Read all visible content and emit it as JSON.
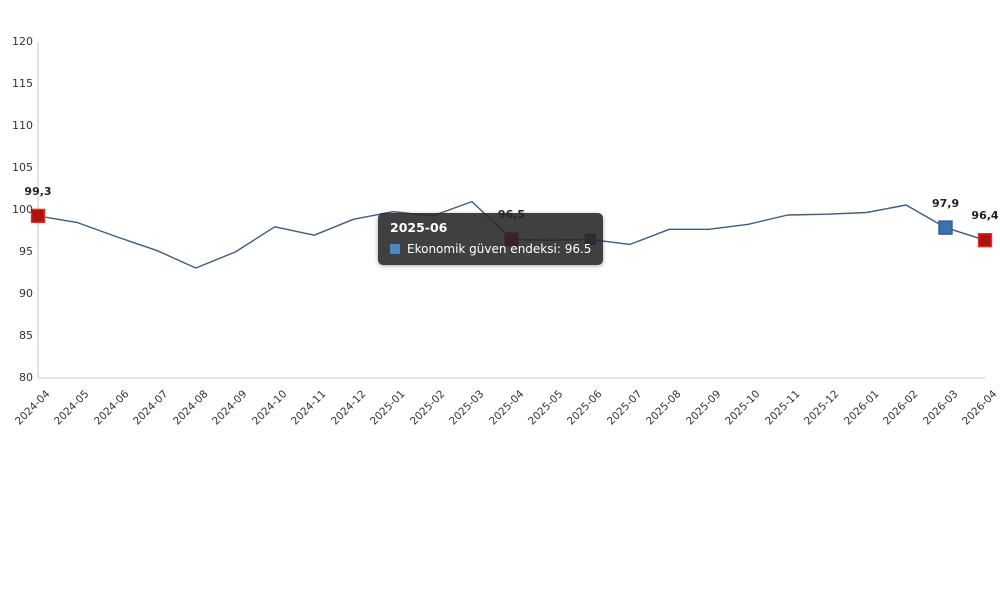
{
  "chart_data": {
    "type": "line",
    "title": "",
    "series_name": "Ekonomik güven endeksi",
    "categories": [
      "2024-04",
      "2024-05",
      "2024-06",
      "2024-07",
      "2024-08",
      "2024-09",
      "2024-10",
      "2024-11",
      "2024-12",
      "2025-01",
      "2025-02",
      "2025-03",
      "2025-04",
      "2025-05",
      "2025-06",
      "2025-07",
      "2025-08",
      "2025-09",
      "2025-10",
      "2025-11",
      "2025-12",
      "2026-01",
      "2026-02",
      "2026-03",
      "2026-04"
    ],
    "values": [
      99.3,
      98.5,
      96.8,
      95.2,
      93.1,
      95.0,
      98.0,
      97.0,
      98.9,
      99.8,
      99.3,
      101.0,
      96.5,
      96.4,
      96.5,
      95.9,
      97.7,
      97.7,
      98.3,
      99.4,
      99.5,
      99.7,
      100.6,
      97.9,
      96.4
    ],
    "ylim": [
      80,
      120
    ],
    "yticks": [
      "120",
      "115",
      "110",
      "105",
      "100",
      "95",
      "90",
      "85",
      "80"
    ],
    "grid": false,
    "legend": "none",
    "markers": [
      {
        "index": 0,
        "value_label": "99,3",
        "color": "red",
        "hover": false
      },
      {
        "index": 12,
        "value_label": "96,5",
        "color": "red",
        "hover": false
      },
      {
        "index": 14,
        "value_label": null,
        "color": "blue",
        "hover": true
      },
      {
        "index": 23,
        "value_label": "97,9",
        "color": "blue",
        "hover": false
      },
      {
        "index": 24,
        "value_label": "96,4",
        "color": "red",
        "hover": false
      }
    ]
  },
  "tooltip": {
    "title": "2025-06",
    "text": "Ekonomik güven endeksi: 96.5"
  },
  "colors": {
    "line": "#3f5c7d",
    "marker_red": "#b01212",
    "marker_red_border": "#df3428",
    "marker_blue": "#3c72ad",
    "marker_blue_border": "#2d5c90",
    "tooltip_icon": "#4e86c6",
    "axis_line": "#c9c9c9"
  }
}
